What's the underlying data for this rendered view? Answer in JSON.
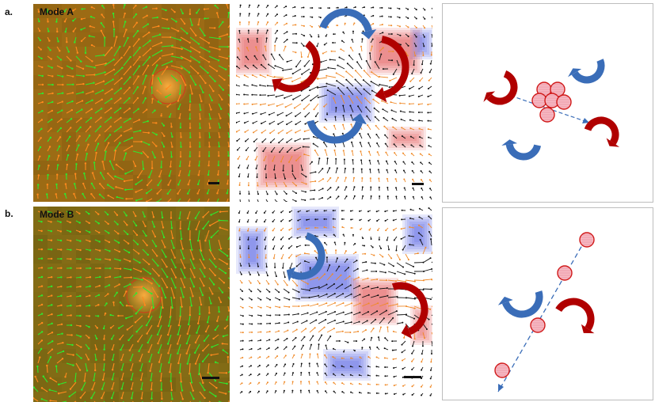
{
  "figure": {
    "rows": [
      {
        "label": "a.",
        "mode": "Mode A",
        "vorticity_map": {
          "positive_color": "#e03030",
          "negative_color": "#3040e0"
        },
        "flow_arrows": {
          "green_color": "#32e632",
          "orange_color": "#ff8c1a",
          "black_color": "#111111"
        },
        "schematic": {
          "cells": 6,
          "clockwise_arrow_color": "#b00000",
          "counterclockwise_arrow_color": "#3a6db8",
          "axis": "dashed"
        }
      },
      {
        "label": "b.",
        "mode": "Mode B",
        "vorticity_map": {
          "positive_color": "#e03030",
          "negative_color": "#3040e0"
        },
        "flow_arrows": {
          "green_color": "#32e632",
          "orange_color": "#ff8c1a",
          "black_color": "#111111"
        },
        "schematic": {
          "cells": 4,
          "clockwise_arrow_color": "#b00000",
          "counterclockwise_arrow_color": "#3a6db8",
          "axis": "dashed"
        }
      }
    ]
  }
}
